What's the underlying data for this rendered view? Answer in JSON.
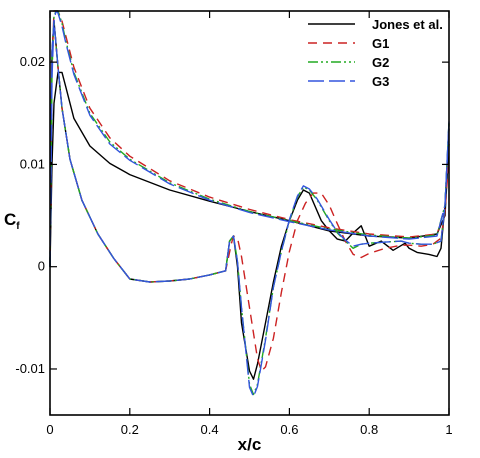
{
  "chart_data": {
    "type": "line",
    "xlabel": "x/c",
    "ylabel": "C",
    "ylabel_sub": "f",
    "xlim": [
      0,
      1
    ],
    "ylim": [
      -0.0145,
      0.025
    ],
    "x_ticks": [
      0,
      0.2,
      0.4,
      0.6,
      0.8,
      1
    ],
    "x_tick_labels": [
      "0",
      "0.2",
      "0.4",
      "0.6",
      "0.8",
      "1"
    ],
    "y_ticks": [
      -0.01,
      0,
      0.01,
      0.02
    ],
    "y_tick_labels": [
      "-0.01",
      "0",
      "0.01",
      "0.02"
    ],
    "grid": false,
    "legend_position": "top-right",
    "series": [
      {
        "name": "Jones et al.",
        "color": "#000000",
        "dash": "solid",
        "upper": {
          "x": [
            0.0,
            0.005,
            0.01,
            0.02,
            0.03,
            0.04,
            0.06,
            0.1,
            0.15,
            0.2,
            0.3,
            0.4,
            0.5,
            0.6,
            0.7,
            0.8,
            0.9,
            0.97,
            0.99,
            1.0
          ],
          "y": [
            0.0,
            0.01,
            0.016,
            0.019,
            0.019,
            0.0175,
            0.0145,
            0.0118,
            0.0101,
            0.009,
            0.0075,
            0.0064,
            0.0054,
            0.0045,
            0.0035,
            0.003,
            0.0028,
            0.0032,
            0.005,
            0.012
          ]
        },
        "lower": {
          "x": [
            0.0,
            0.005,
            0.01,
            0.02,
            0.03,
            0.05,
            0.08,
            0.12,
            0.16,
            0.2,
            0.25,
            0.3,
            0.35,
            0.4,
            0.44,
            0.45,
            0.46,
            0.47,
            0.48,
            0.5,
            0.51,
            0.52,
            0.54,
            0.56,
            0.58,
            0.6,
            0.62,
            0.635,
            0.65,
            0.68,
            0.7,
            0.72,
            0.74,
            0.76,
            0.78,
            0.8,
            0.83,
            0.86,
            0.89,
            0.9,
            0.92,
            0.95,
            0.97,
            0.98,
            0.99,
            1.0
          ],
          "y": [
            0.0,
            0.021,
            0.024,
            0.0195,
            0.0155,
            0.0105,
            0.0065,
            0.0032,
            0.0008,
            -0.0012,
            -0.0015,
            -0.0014,
            -0.0012,
            -0.0008,
            -0.0004,
            0.0025,
            0.003,
            0.0,
            -0.0055,
            -0.0102,
            -0.011,
            -0.0095,
            -0.0055,
            -0.0015,
            0.002,
            0.0045,
            0.0065,
            0.0075,
            0.0072,
            0.0045,
            0.0035,
            0.0027,
            0.0025,
            0.0033,
            0.004,
            0.002,
            0.0025,
            0.0016,
            0.0023,
            0.0018,
            0.0014,
            0.0012,
            0.001,
            0.0018,
            0.006,
            0.0135
          ]
        }
      },
      {
        "name": "G1",
        "color": "#cc2222",
        "dash": "9,6",
        "upper": {
          "x": [
            0.0,
            0.005,
            0.01,
            0.015,
            0.02,
            0.03,
            0.04,
            0.06,
            0.1,
            0.15,
            0.2,
            0.3,
            0.4,
            0.5,
            0.6,
            0.7,
            0.8,
            0.9,
            0.97,
            0.99,
            1.0
          ],
          "y": [
            0.0,
            0.02,
            0.025,
            0.025,
            0.025,
            0.024,
            0.0225,
            0.0195,
            0.0155,
            0.0126,
            0.0108,
            0.0084,
            0.0068,
            0.0056,
            0.0046,
            0.0038,
            0.0032,
            0.0029,
            0.0032,
            0.0055,
            0.014
          ]
        },
        "lower": {
          "x": [
            0.0,
            0.005,
            0.01,
            0.02,
            0.03,
            0.05,
            0.08,
            0.12,
            0.16,
            0.2,
            0.25,
            0.3,
            0.35,
            0.4,
            0.44,
            0.455,
            0.46,
            0.47,
            0.48,
            0.5,
            0.52,
            0.53,
            0.54,
            0.56,
            0.58,
            0.6,
            0.62,
            0.64,
            0.66,
            0.68,
            0.7,
            0.72,
            0.74,
            0.76,
            0.78,
            0.8,
            0.84,
            0.88,
            0.9,
            0.93,
            0.96,
            0.98,
            0.99,
            1.0
          ],
          "y": [
            0.0,
            0.021,
            0.024,
            0.0195,
            0.0155,
            0.0105,
            0.0065,
            0.0032,
            0.0008,
            -0.0012,
            -0.0015,
            -0.0014,
            -0.0012,
            -0.0008,
            -0.0004,
            0.0023,
            0.003,
            0.0028,
            0.001,
            -0.004,
            -0.009,
            -0.0102,
            -0.0098,
            -0.007,
            -0.0025,
            0.0015,
            0.0045,
            0.0062,
            0.0072,
            0.0072,
            0.006,
            0.0042,
            0.0025,
            0.0012,
            0.0009,
            0.0013,
            0.0018,
            0.0021,
            0.0021,
            0.002,
            0.0022,
            0.0028,
            0.0055,
            0.0105
          ]
        }
      },
      {
        "name": "G2",
        "color": "#22aa22",
        "dash": "10,3,2,3,2,3",
        "upper": {
          "x": [
            0.0,
            0.005,
            0.01,
            0.015,
            0.02,
            0.03,
            0.04,
            0.06,
            0.1,
            0.15,
            0.2,
            0.3,
            0.4,
            0.5,
            0.6,
            0.7,
            0.8,
            0.9,
            0.97,
            0.99,
            1.0
          ],
          "y": [
            0.0,
            0.019,
            0.0245,
            0.025,
            0.025,
            0.0238,
            0.022,
            0.019,
            0.015,
            0.0122,
            0.0105,
            0.0082,
            0.0066,
            0.0054,
            0.0045,
            0.0037,
            0.0031,
            0.0028,
            0.0031,
            0.006,
            0.0142
          ]
        },
        "lower": {
          "x": [
            0.0,
            0.005,
            0.01,
            0.02,
            0.03,
            0.05,
            0.08,
            0.12,
            0.16,
            0.2,
            0.25,
            0.3,
            0.35,
            0.4,
            0.44,
            0.45,
            0.46,
            0.47,
            0.48,
            0.5,
            0.51,
            0.52,
            0.54,
            0.56,
            0.58,
            0.6,
            0.62,
            0.635,
            0.65,
            0.67,
            0.7,
            0.72,
            0.74,
            0.76,
            0.78,
            0.8,
            0.84,
            0.88,
            0.9,
            0.93,
            0.96,
            0.98,
            0.99,
            1.0
          ],
          "y": [
            0.0,
            0.021,
            0.024,
            0.0195,
            0.0155,
            0.0105,
            0.0065,
            0.0032,
            0.0008,
            -0.0012,
            -0.0015,
            -0.0014,
            -0.0012,
            -0.0008,
            -0.0004,
            0.0025,
            0.003,
            0.0005,
            -0.004,
            -0.0115,
            -0.0125,
            -0.0115,
            -0.007,
            -0.002,
            0.0015,
            0.0045,
            0.0068,
            0.0078,
            0.0075,
            0.0065,
            0.0045,
            0.0033,
            0.0025,
            0.0018,
            0.0022,
            0.0023,
            0.0024,
            0.0025,
            0.0023,
            0.0022,
            0.0022,
            0.0025,
            0.006,
            0.014
          ]
        }
      },
      {
        "name": "G3",
        "color": "#3355dd",
        "dash": "16,5",
        "upper": {
          "x": [
            0.0,
            0.005,
            0.01,
            0.015,
            0.02,
            0.03,
            0.04,
            0.06,
            0.1,
            0.15,
            0.2,
            0.3,
            0.4,
            0.5,
            0.6,
            0.7,
            0.8,
            0.9,
            0.97,
            0.99,
            1.0
          ],
          "y": [
            0.0,
            0.0185,
            0.024,
            0.025,
            0.0248,
            0.0235,
            0.0218,
            0.0188,
            0.0148,
            0.012,
            0.0104,
            0.0081,
            0.0065,
            0.0053,
            0.0044,
            0.0036,
            0.003,
            0.0027,
            0.003,
            0.006,
            0.0142
          ]
        },
        "lower": {
          "x": [
            0.0,
            0.005,
            0.01,
            0.02,
            0.03,
            0.05,
            0.08,
            0.12,
            0.16,
            0.2,
            0.25,
            0.3,
            0.35,
            0.4,
            0.44,
            0.45,
            0.46,
            0.47,
            0.48,
            0.5,
            0.51,
            0.52,
            0.54,
            0.56,
            0.58,
            0.6,
            0.62,
            0.635,
            0.65,
            0.67,
            0.7,
            0.72,
            0.74,
            0.76,
            0.78,
            0.8,
            0.84,
            0.88,
            0.9,
            0.93,
            0.96,
            0.98,
            0.99,
            1.0
          ],
          "y": [
            0.0,
            0.021,
            0.024,
            0.0195,
            0.0155,
            0.0105,
            0.0065,
            0.0032,
            0.0008,
            -0.0012,
            -0.0015,
            -0.0014,
            -0.0012,
            -0.0008,
            -0.0004,
            0.0025,
            0.003,
            0.0005,
            -0.004,
            -0.0118,
            -0.0127,
            -0.0117,
            -0.0072,
            -0.002,
            0.0015,
            0.0046,
            0.0069,
            0.0079,
            0.0076,
            0.0066,
            0.0046,
            0.0034,
            0.0026,
            0.002,
            0.0022,
            0.0023,
            0.0024,
            0.0025,
            0.0023,
            0.0022,
            0.0022,
            0.0025,
            0.006,
            0.014
          ]
        }
      }
    ]
  }
}
